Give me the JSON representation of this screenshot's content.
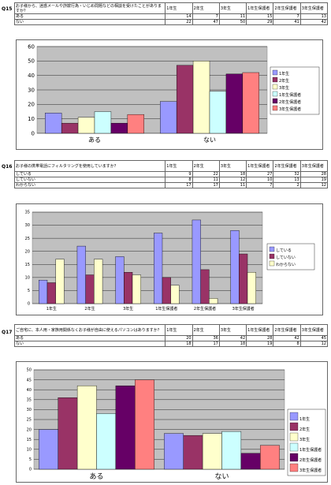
{
  "colors": [
    "#9999ff",
    "#993366",
    "#ffffcc",
    "#ccffff",
    "#660066",
    "#ff8080"
  ],
  "q15": {
    "label": "Q15",
    "question": "お子様から、迷惑メールや詐欺行為・いじめ問題などの相談を受けたことがありますか？",
    "headers": [
      "1年生",
      "2年生",
      "3年生",
      "1年生保護者",
      "2年生保護者",
      "3年生保護者"
    ],
    "rows": [
      {
        "label": "ある",
        "values": [
          "14",
          "7",
          "11",
          "15",
          "7",
          "13"
        ]
      },
      {
        "label": "ない",
        "values": [
          "22",
          "47",
          "50",
          "29",
          "41",
          "42"
        ]
      }
    ],
    "chart": {
      "type": "bar",
      "categories": [
        "ある",
        "ない"
      ],
      "series": [
        {
          "name": "1年生",
          "values": [
            14,
            22
          ]
        },
        {
          "name": "2年生",
          "values": [
            7,
            47
          ]
        },
        {
          "name": "3年生",
          "values": [
            11,
            50
          ]
        },
        {
          "name": "1年生保護者",
          "values": [
            15,
            29
          ]
        },
        {
          "name": "2年生保護者",
          "values": [
            7,
            41
          ]
        },
        {
          "name": "3年生保護者",
          "values": [
            13,
            42
          ]
        }
      ],
      "ylim": [
        0,
        60
      ],
      "yticks": [
        0,
        10,
        20,
        30,
        40,
        50,
        60
      ],
      "grid": true,
      "legend": "right"
    }
  },
  "q16": {
    "label": "Q16",
    "question": "お子様の携帯電話にフィルタリングを使用していますか？",
    "headers": [
      "1年生",
      "2年生",
      "3年生",
      "1年生保護者",
      "2年生保護者",
      "3年生保護者"
    ],
    "rows": [
      {
        "label": "している",
        "values": [
          "9",
          "22",
          "18",
          "27",
          "32",
          "28"
        ]
      },
      {
        "label": "していない",
        "values": [
          "8",
          "11",
          "12",
          "10",
          "13",
          "19"
        ]
      },
      {
        "label": "わからない",
        "values": [
          "17",
          "17",
          "11",
          "7",
          "2",
          "12"
        ]
      }
    ],
    "chart": {
      "type": "bar",
      "categories": [
        "1年生",
        "2年生",
        "3年生",
        "1年生保護者",
        "2年生保護者",
        "3年生保護者"
      ],
      "series": [
        {
          "name": "している",
          "values": [
            9,
            22,
            18,
            27,
            32,
            28
          ]
        },
        {
          "name": "していない",
          "values": [
            8,
            11,
            12,
            10,
            13,
            19
          ]
        },
        {
          "name": "わからない",
          "values": [
            17,
            17,
            11,
            7,
            2,
            12
          ]
        }
      ],
      "ylim": [
        0,
        35
      ],
      "yticks": [
        0,
        5,
        10,
        15,
        20,
        25,
        30,
        35
      ],
      "grid": true,
      "legend": "right"
    }
  },
  "q17": {
    "label": "Q17",
    "question": "ご自宅に、本人用・家族用関係なくお子様が自由に使えるパソコンはありますか？",
    "headers": [
      "1年生",
      "2年生",
      "3年生",
      "1年生保護者",
      "2年生保護者",
      "3年生保護者"
    ],
    "rows": [
      {
        "label": "ある",
        "values": [
          "20",
          "36",
          "42",
          "28",
          "42",
          "45"
        ]
      },
      {
        "label": "ない",
        "values": [
          "18",
          "17",
          "18",
          "19",
          "8",
          "12"
        ]
      }
    ],
    "chart": {
      "type": "bar",
      "categories": [
        "ある",
        "ない"
      ],
      "series": [
        {
          "name": "1年生",
          "values": [
            20,
            18
          ]
        },
        {
          "name": "2年生",
          "values": [
            36,
            17
          ]
        },
        {
          "name": "3年生",
          "values": [
            42,
            18
          ]
        },
        {
          "name": "1年生保護者",
          "values": [
            28,
            19
          ]
        },
        {
          "name": "2年生保護者",
          "values": [
            42,
            8
          ]
        },
        {
          "name": "3年生保護者",
          "values": [
            45,
            12
          ]
        }
      ],
      "ylim": [
        0,
        50
      ],
      "yticks": [
        0,
        5,
        10,
        15,
        20,
        25,
        30,
        35,
        40,
        45,
        50
      ],
      "grid": true,
      "legend": "right"
    }
  },
  "chart_data": [
    {
      "type": "bar",
      "categories": [
        "ある",
        "ない"
      ],
      "series": [
        {
          "name": "1年生",
          "values": [
            14,
            22
          ]
        },
        {
          "name": "2年生",
          "values": [
            7,
            47
          ]
        },
        {
          "name": "3年生",
          "values": [
            11,
            50
          ]
        },
        {
          "name": "1年生保護者",
          "values": [
            15,
            29
          ]
        },
        {
          "name": "2年生保護者",
          "values": [
            7,
            41
          ]
        },
        {
          "name": "3年生保護者",
          "values": [
            13,
            42
          ]
        }
      ],
      "ylim": [
        0,
        60
      ],
      "grid": true,
      "legend": "right"
    },
    {
      "type": "bar",
      "categories": [
        "1年生",
        "2年生",
        "3年生",
        "1年生保護者",
        "2年生保護者",
        "3年生保護者"
      ],
      "series": [
        {
          "name": "している",
          "values": [
            9,
            22,
            18,
            27,
            32,
            28
          ]
        },
        {
          "name": "していない",
          "values": [
            8,
            11,
            12,
            10,
            13,
            19
          ]
        },
        {
          "name": "わからない",
          "values": [
            17,
            17,
            11,
            7,
            2,
            12
          ]
        }
      ],
      "ylim": [
        0,
        35
      ],
      "grid": true,
      "legend": "right"
    },
    {
      "type": "bar",
      "categories": [
        "ある",
        "ない"
      ],
      "series": [
        {
          "name": "1年生",
          "values": [
            20,
            18
          ]
        },
        {
          "name": "2年生",
          "values": [
            36,
            17
          ]
        },
        {
          "name": "3年生",
          "values": [
            42,
            18
          ]
        },
        {
          "name": "1年生保護者",
          "values": [
            28,
            19
          ]
        },
        {
          "name": "2年生保護者",
          "values": [
            42,
            8
          ]
        },
        {
          "name": "3年生保護者",
          "values": [
            45,
            12
          ]
        }
      ],
      "ylim": [
        0,
        50
      ],
      "grid": true,
      "legend": "right"
    }
  ]
}
